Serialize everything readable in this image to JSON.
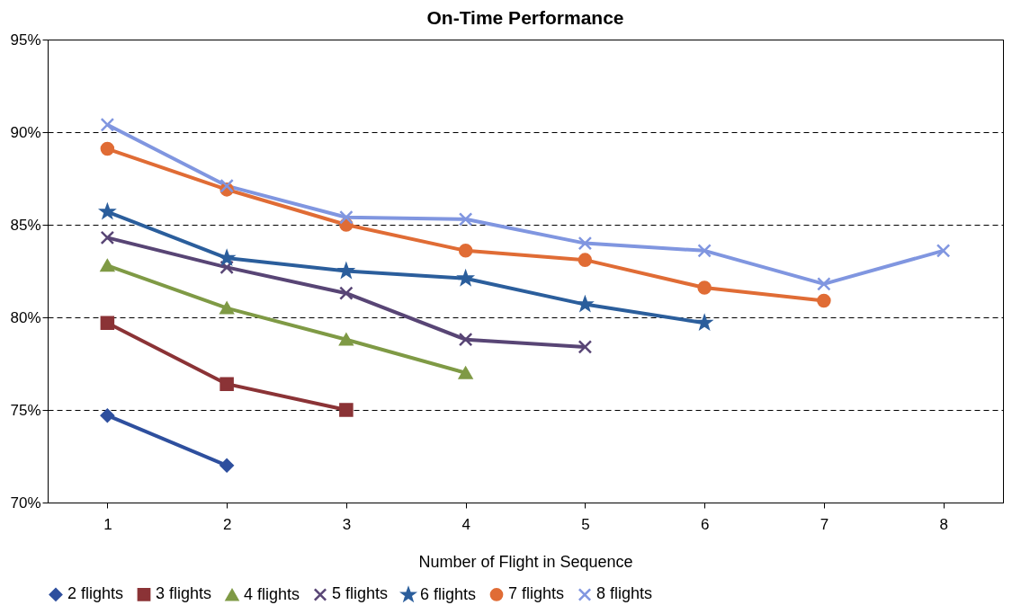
{
  "chart_data": {
    "type": "line",
    "title": "On-Time Performance",
    "xlabel": "Number of Flight in Sequence",
    "categories": [
      "1",
      "2",
      "3",
      "4",
      "5",
      "6",
      "7",
      "8"
    ],
    "series": [
      {
        "name": "2 flights",
        "color": "#2e4f9e",
        "marker": "diamond",
        "values": [
          74.7,
          72.0,
          null,
          null,
          null,
          null,
          null,
          null
        ]
      },
      {
        "name": "3 flights",
        "color": "#8b3336",
        "marker": "square",
        "values": [
          79.7,
          76.4,
          75.0,
          null,
          null,
          null,
          null,
          null
        ]
      },
      {
        "name": "4 flights",
        "color": "#7f9a45",
        "marker": "triangle",
        "values": [
          82.8,
          80.5,
          78.8,
          77.0,
          null,
          null,
          null,
          null
        ]
      },
      {
        "name": "5 flights",
        "color": "#584575",
        "marker": "cross",
        "values": [
          84.3,
          82.7,
          81.3,
          78.8,
          78.4,
          null,
          null,
          null
        ]
      },
      {
        "name": "6 flights",
        "color": "#2b5e9c",
        "marker": "star",
        "values": [
          85.7,
          83.2,
          82.5,
          82.1,
          80.7,
          79.7,
          null,
          null
        ]
      },
      {
        "name": "7 flights",
        "color": "#e06c35",
        "marker": "circle",
        "values": [
          89.1,
          86.9,
          85.0,
          83.6,
          83.1,
          81.6,
          80.9,
          null
        ]
      },
      {
        "name": "8 flights",
        "color": "#8096e0",
        "marker": "cross",
        "values": [
          90.4,
          87.1,
          85.4,
          85.3,
          84.0,
          83.6,
          81.8,
          83.6
        ]
      }
    ],
    "ylim": [
      70,
      95
    ],
    "yticks": [
      {
        "value": 70,
        "label": "70%"
      },
      {
        "value": 75,
        "label": "75%"
      },
      {
        "value": 80,
        "label": "80%"
      },
      {
        "value": 85,
        "label": "85%"
      },
      {
        "value": 90,
        "label": "90%"
      },
      {
        "value": 95,
        "label": "95%"
      }
    ],
    "grid": "y",
    "legend": "bottom",
    "line_style": "solid"
  }
}
